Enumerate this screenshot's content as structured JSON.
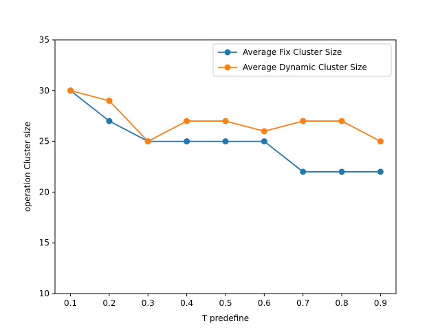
{
  "chart_data": {
    "type": "line",
    "title": "",
    "xlabel": "T predefine",
    "ylabel": "operation Cluster size",
    "x": [
      0.1,
      0.2,
      0.3,
      0.4,
      0.5,
      0.6,
      0.7,
      0.8,
      0.9
    ],
    "x_tick_labels": [
      "0.1",
      "0.2",
      "0.3",
      "0.4",
      "0.5",
      "0.6",
      "0.7",
      "0.8",
      "0.9"
    ],
    "xlim": [
      0.06,
      0.94
    ],
    "ylim": [
      10,
      35
    ],
    "y_ticks": [
      10,
      15,
      20,
      25,
      30,
      35
    ],
    "y_tick_labels": [
      "10",
      "15",
      "20",
      "25",
      "30",
      "35"
    ],
    "grid": false,
    "legend_position": "top-right",
    "series": [
      {
        "name": "Average Fix Cluster Size",
        "color": "#1f77b4",
        "marker": "circle",
        "values": [
          30,
          27,
          25,
          25,
          25,
          25,
          22,
          22,
          22
        ]
      },
      {
        "name": "Average Dynamic Cluster Size",
        "color": "#ff7f0e",
        "marker": "circle",
        "values": [
          30,
          29,
          25,
          27,
          27,
          26,
          27,
          27,
          25
        ]
      }
    ]
  }
}
